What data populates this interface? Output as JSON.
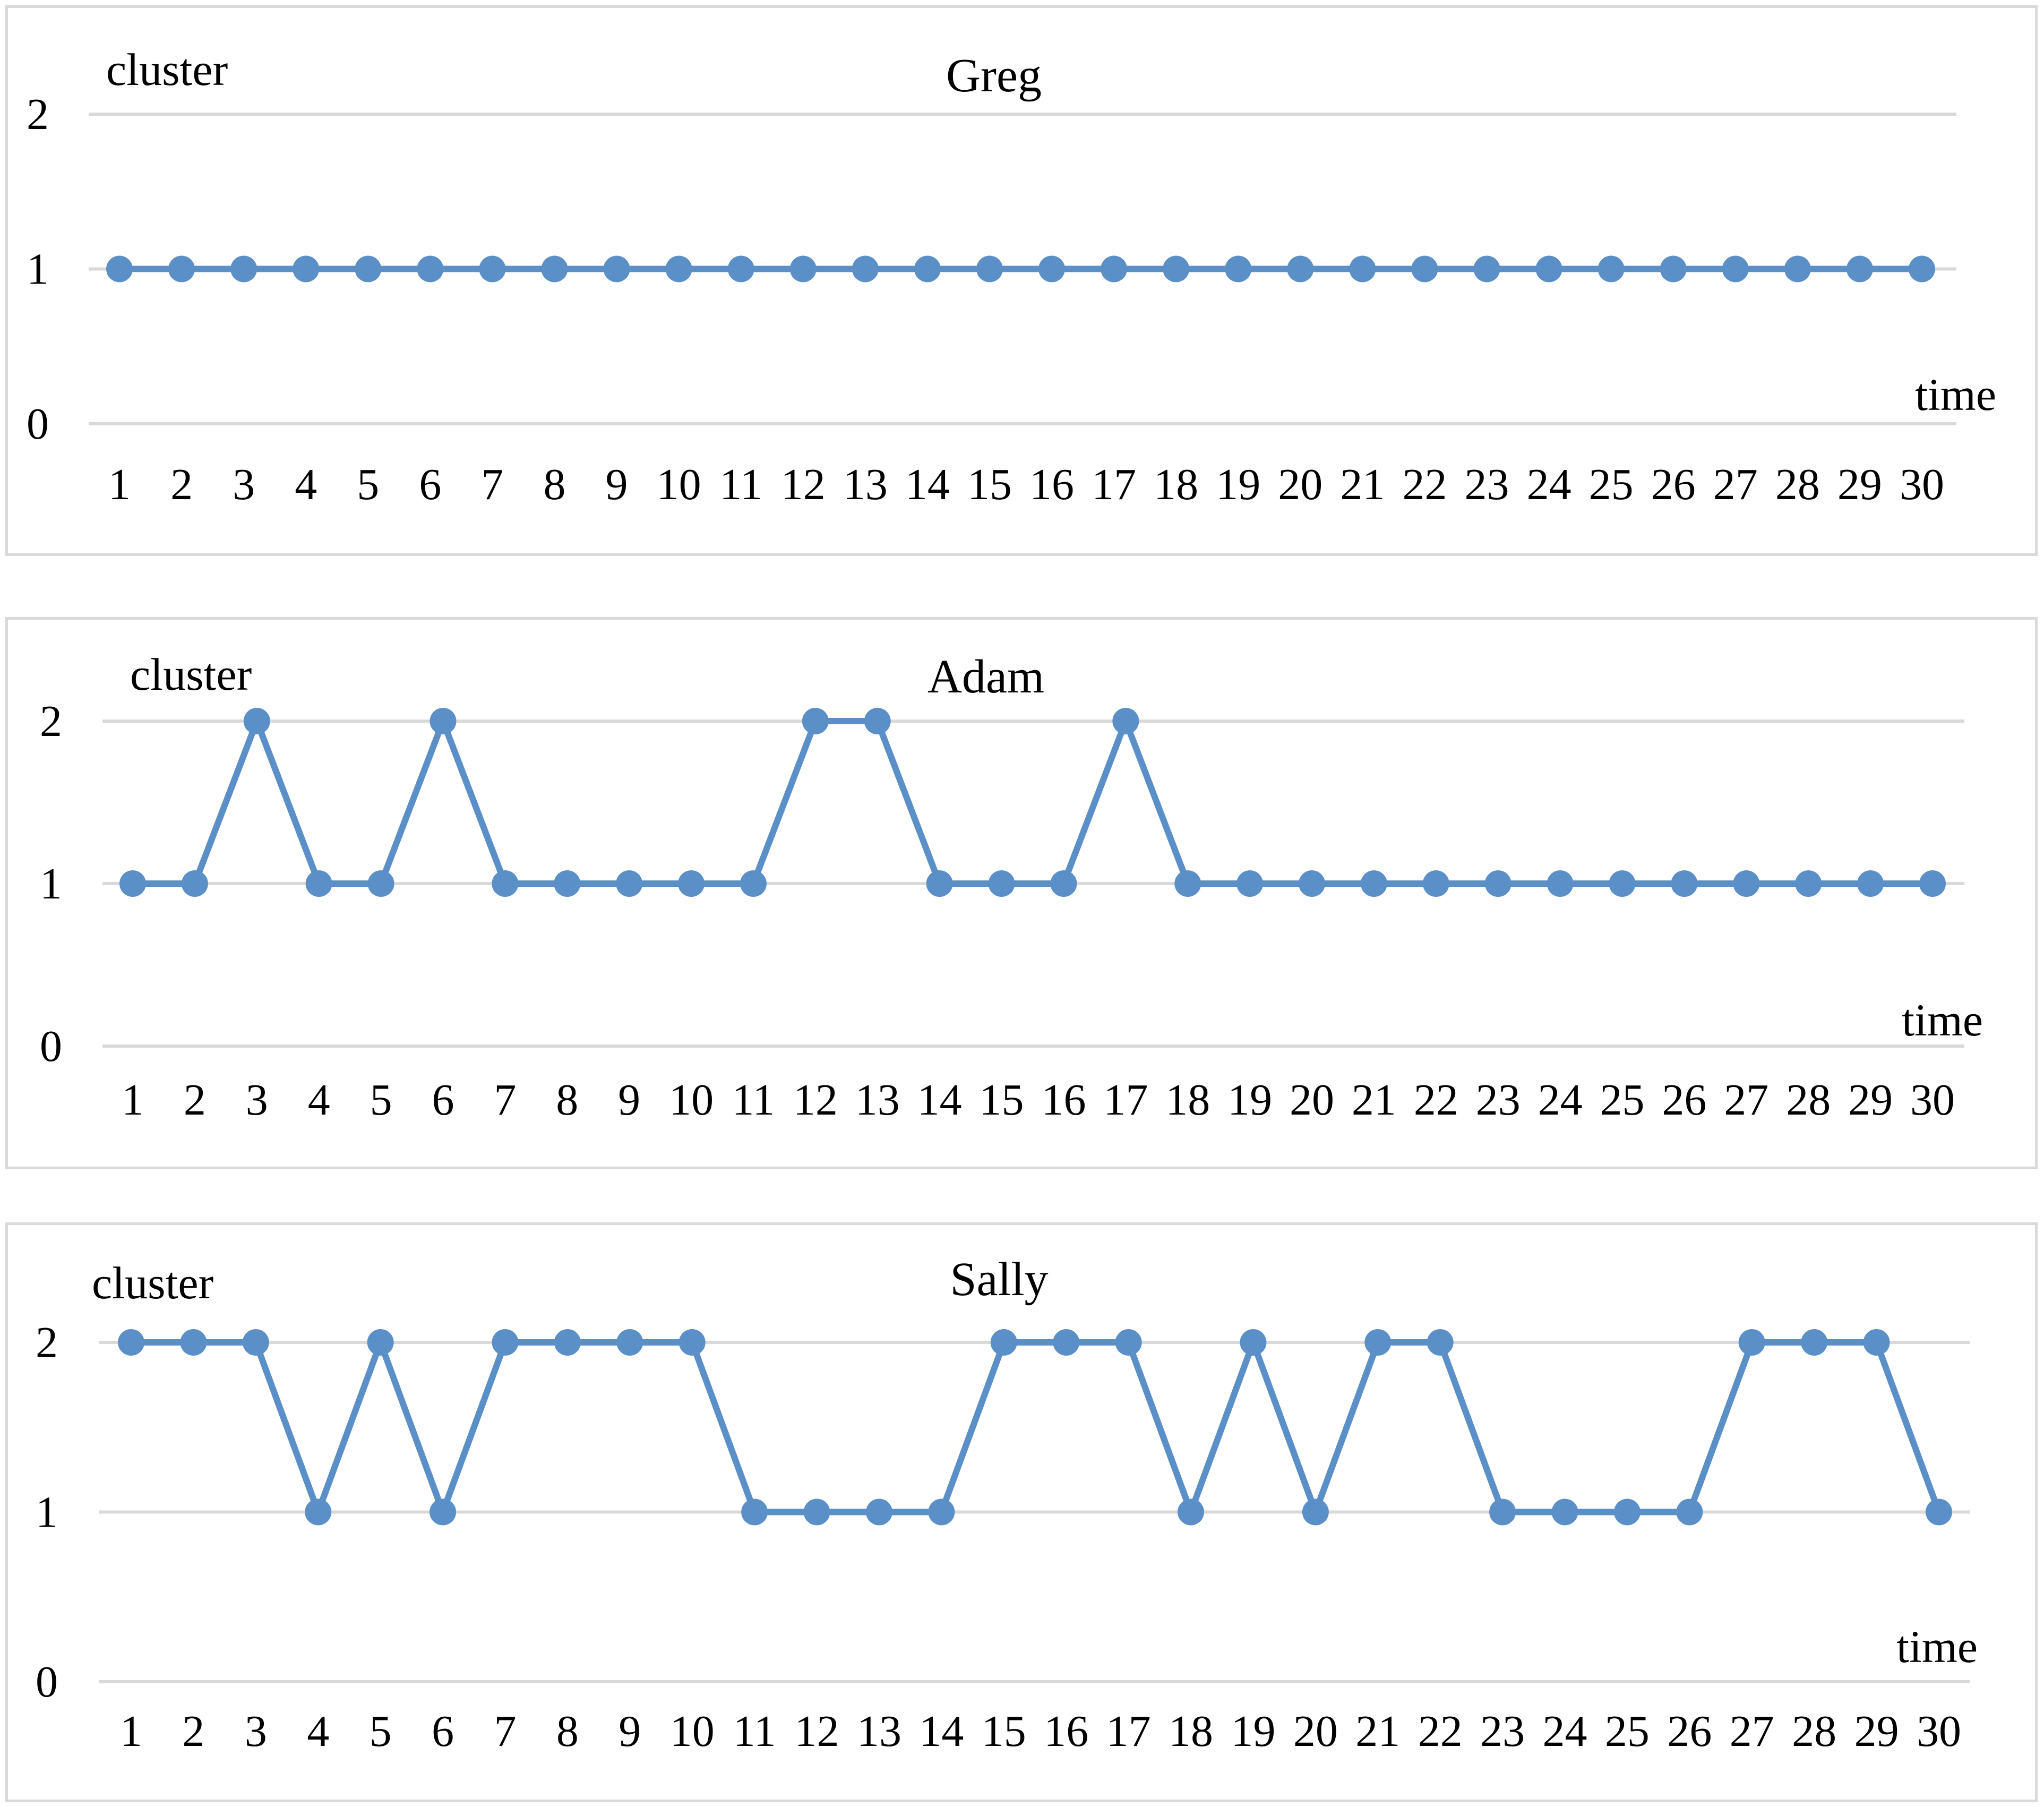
{
  "chart_data": [
    {
      "type": "line",
      "title": "Greg",
      "xlabel": "time",
      "ylabel": "cluster",
      "x": [
        1,
        2,
        3,
        4,
        5,
        6,
        7,
        8,
        9,
        10,
        11,
        12,
        13,
        14,
        15,
        16,
        17,
        18,
        19,
        20,
        21,
        22,
        23,
        24,
        25,
        26,
        27,
        28,
        29,
        30
      ],
      "y_ticks": [
        0,
        1,
        2
      ],
      "ylim": [
        0,
        2
      ],
      "grid": true,
      "legend": "none",
      "color": "#5b8fc7",
      "series": [
        {
          "values": [
            1,
            1,
            1,
            1,
            1,
            1,
            1,
            1,
            1,
            1,
            1,
            1,
            1,
            1,
            1,
            1,
            1,
            1,
            1,
            1,
            1,
            1,
            1,
            1,
            1,
            1,
            1,
            1,
            1,
            1
          ]
        }
      ]
    },
    {
      "type": "line",
      "title": "Adam",
      "xlabel": "time",
      "ylabel": "cluster",
      "x": [
        1,
        2,
        3,
        4,
        5,
        6,
        7,
        8,
        9,
        10,
        11,
        12,
        13,
        14,
        15,
        16,
        17,
        18,
        19,
        20,
        21,
        22,
        23,
        24,
        25,
        26,
        27,
        28,
        29,
        30
      ],
      "y_ticks": [
        0,
        1,
        2
      ],
      "ylim": [
        0,
        2
      ],
      "grid": true,
      "legend": "none",
      "color": "#5b8fc7",
      "series": [
        {
          "values": [
            1,
            1,
            2,
            1,
            1,
            2,
            1,
            1,
            1,
            1,
            1,
            2,
            2,
            1,
            1,
            1,
            2,
            1,
            1,
            1,
            1,
            1,
            1,
            1,
            1,
            1,
            1,
            1,
            1,
            1
          ]
        }
      ]
    },
    {
      "type": "line",
      "title": "Sally",
      "xlabel": "time",
      "ylabel": "cluster",
      "x": [
        1,
        2,
        3,
        4,
        5,
        6,
        7,
        8,
        9,
        10,
        11,
        12,
        13,
        14,
        15,
        16,
        17,
        18,
        19,
        20,
        21,
        22,
        23,
        24,
        25,
        26,
        27,
        28,
        29,
        30
      ],
      "y_ticks": [
        0,
        1,
        2
      ],
      "ylim": [
        0,
        2
      ],
      "grid": true,
      "legend": "none",
      "color": "#5b8fc7",
      "series": [
        {
          "values": [
            2,
            2,
            2,
            1,
            2,
            1,
            2,
            2,
            2,
            2,
            1,
            1,
            1,
            1,
            2,
            2,
            2,
            1,
            2,
            1,
            2,
            2,
            1,
            1,
            1,
            1,
            2,
            2,
            2,
            1
          ]
        }
      ]
    }
  ]
}
